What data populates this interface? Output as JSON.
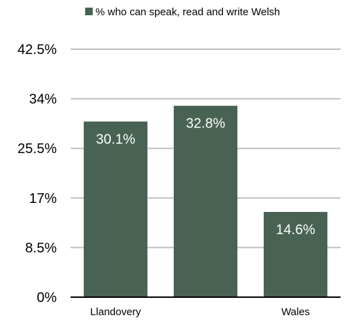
{
  "chart_data": {
    "type": "bar",
    "categories": [
      "Llandovery",
      "",
      "Wales"
    ],
    "series": [
      {
        "name": "% who can speak, read and write Welsh",
        "values": [
          30.1,
          32.8,
          14.6
        ],
        "color": "#486353"
      }
    ],
    "data_labels": [
      "30.1%",
      "32.8%",
      "14.6%"
    ],
    "yticks": [
      "0%",
      "8.5%",
      "17%",
      "25.5%",
      "34%",
      "42.5%"
    ],
    "ylim": [
      0,
      42.5
    ],
    "grid": true,
    "grid_color": "#c0c0c0",
    "legend_position": "top-center",
    "title": "",
    "xlabel": "",
    "ylabel": ""
  }
}
